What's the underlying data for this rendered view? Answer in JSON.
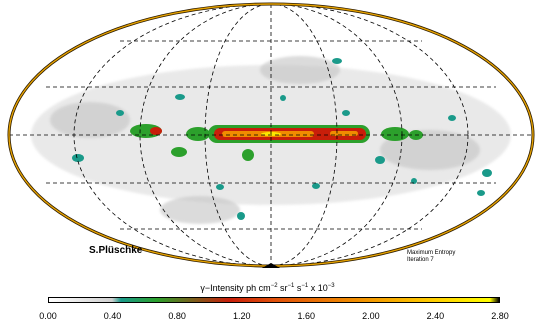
{
  "map": {
    "projection": "Hammer-Aitoff",
    "author": "S.Plüschke",
    "method_line1": "Maximum Entropy",
    "method_line2": "Iteration  7",
    "colors": {
      "background": "#ffffff",
      "outline_outer": "#2a1a00",
      "outline_inner": "#e5a100",
      "grid": "#000000",
      "low": "#c8c8c8",
      "teal": "#1a9a8a",
      "green": "#2ca02c",
      "red": "#c81e0a",
      "orange": "#f08c00",
      "yellow": "#ffff00"
    }
  },
  "colorbar": {
    "title_prefix": "γ−Intensity ph cm",
    "title_exp1": "−2",
    "title_mid1": " sr",
    "title_exp2": "−1",
    "title_mid2": " s",
    "title_exp3": "−1",
    "title_mid3": "  x 10",
    "title_exp4": "−3",
    "min": 0.0,
    "max": 2.8,
    "ticks": [
      "0.00",
      "0.40",
      "0.80",
      "1.20",
      "1.60",
      "2.00",
      "2.40",
      "2.80"
    ]
  }
}
